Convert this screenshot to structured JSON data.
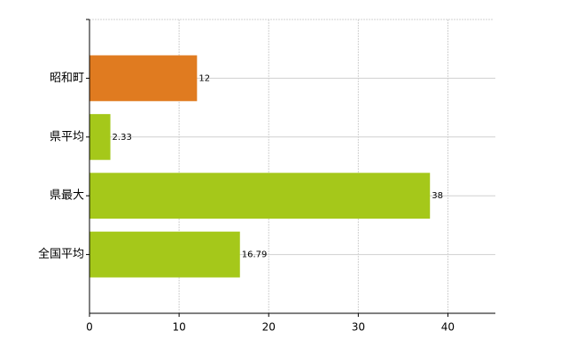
{
  "chart_data": {
    "type": "bar",
    "orientation": "horizontal",
    "categories": [
      "昭和町",
      "県平均",
      "県最大",
      "全国平均"
    ],
    "values": [
      12,
      2.33,
      38,
      16.79
    ],
    "colors": [
      "#e07b20",
      "#a5c81a",
      "#a5c81a",
      "#a5c81a"
    ],
    "xlim": [
      0,
      45
    ],
    "xticks": [
      0,
      10,
      20,
      30,
      40
    ],
    "grid": true,
    "data_labels": true
  }
}
